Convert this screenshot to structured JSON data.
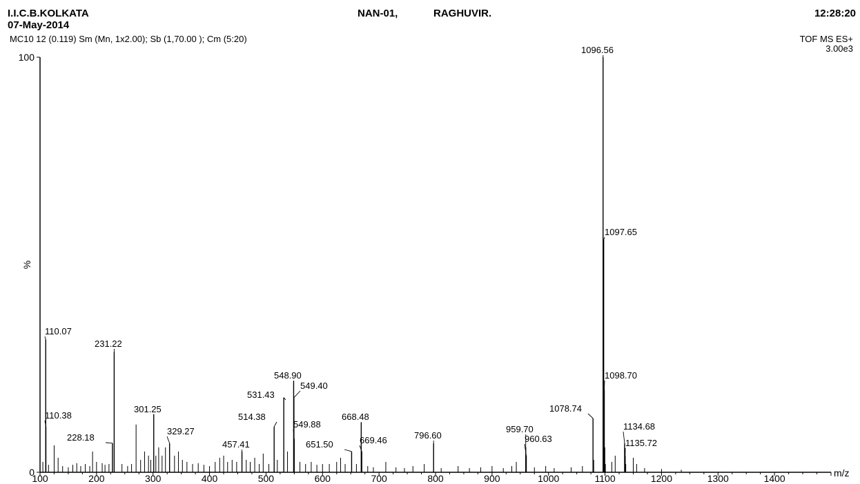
{
  "header": {
    "institute": "I.I.C.B.KOLKATA",
    "date": "07-May-2014",
    "sample": "NAN-01,",
    "operator": "RAGHUVIR.",
    "time": "12:28:20",
    "processing": "MC10  12 (0.119) Sm (Mn, 1x2.00); Sb (1,70.00 ); Cm (5:20)",
    "mode": "TOF MS ES+",
    "intensity": "3.00e3"
  },
  "chart_data": {
    "type": "bar",
    "title": "",
    "xlabel": "m/z",
    "ylabel": "%",
    "xlim": [
      100,
      1500
    ],
    "ylim": [
      0,
      100
    ],
    "x_ticks": [
      100,
      200,
      300,
      400,
      500,
      600,
      700,
      800,
      900,
      1000,
      1100,
      1200,
      1300,
      1400
    ],
    "y_ticks": [
      0,
      100
    ],
    "grid": false,
    "labeled_peaks": [
      {
        "mz": 110.07,
        "label": "110.07",
        "intensity": 32
      },
      {
        "mz": 110.38,
        "label": "110.38",
        "intensity": 11
      },
      {
        "mz": 228.18,
        "label": "228.18",
        "intensity": 7
      },
      {
        "mz": 231.22,
        "label": "231.22",
        "intensity": 29
      },
      {
        "mz": 301.25,
        "label": "301.25",
        "intensity": 14
      },
      {
        "mz": 329.27,
        "label": "329.27",
        "intensity": 7
      },
      {
        "mz": 457.41,
        "label": "457.41",
        "intensity": 5
      },
      {
        "mz": 514.38,
        "label": "514.38",
        "intensity": 11
      },
      {
        "mz": 531.43,
        "label": "531.43",
        "intensity": 18
      },
      {
        "mz": 548.9,
        "label": "548.90",
        "intensity": 22
      },
      {
        "mz": 549.4,
        "label": "549.40",
        "intensity": 18
      },
      {
        "mz": 549.88,
        "label": "549.88",
        "intensity": 8
      },
      {
        "mz": 651.5,
        "label": "651.50",
        "intensity": 5
      },
      {
        "mz": 668.48,
        "label": "668.48",
        "intensity": 12
      },
      {
        "mz": 669.46,
        "label": "669.46",
        "intensity": 5
      },
      {
        "mz": 796.6,
        "label": "796.60",
        "intensity": 7
      },
      {
        "mz": 959.7,
        "label": "959.70",
        "intensity": 6
      },
      {
        "mz": 960.63,
        "label": "960.63",
        "intensity": 4
      },
      {
        "mz": 1078.74,
        "label": "1078.74",
        "intensity": 13
      },
      {
        "mz": 1096.56,
        "label": "1096.56",
        "intensity": 100
      },
      {
        "mz": 1097.65,
        "label": "1097.65",
        "intensity": 56
      },
      {
        "mz": 1098.7,
        "label": "1098.70",
        "intensity": 20
      },
      {
        "mz": 1134.68,
        "label": "1134.68",
        "intensity": 7
      },
      {
        "mz": 1135.72,
        "label": "1135.72",
        "intensity": 4
      }
    ],
    "minor_peaks": [
      {
        "mz": 105,
        "intensity": 2.5
      },
      {
        "mz": 115,
        "intensity": 1.8
      },
      {
        "mz": 125,
        "intensity": 6.5
      },
      {
        "mz": 132,
        "intensity": 3.5
      },
      {
        "mz": 140,
        "intensity": 1.5
      },
      {
        "mz": 150,
        "intensity": 1.2
      },
      {
        "mz": 158,
        "intensity": 1.8
      },
      {
        "mz": 165,
        "intensity": 2.2
      },
      {
        "mz": 172,
        "intensity": 1.5
      },
      {
        "mz": 180,
        "intensity": 2
      },
      {
        "mz": 188,
        "intensity": 1.5
      },
      {
        "mz": 193,
        "intensity": 5
      },
      {
        "mz": 200,
        "intensity": 2.5
      },
      {
        "mz": 210,
        "intensity": 2.2
      },
      {
        "mz": 215,
        "intensity": 1.8
      },
      {
        "mz": 222,
        "intensity": 2
      },
      {
        "mz": 245,
        "intensity": 2
      },
      {
        "mz": 255,
        "intensity": 1.5
      },
      {
        "mz": 262,
        "intensity": 2
      },
      {
        "mz": 270,
        "intensity": 11.5
      },
      {
        "mz": 278,
        "intensity": 3
      },
      {
        "mz": 285,
        "intensity": 5
      },
      {
        "mz": 292,
        "intensity": 4
      },
      {
        "mz": 296,
        "intensity": 3
      },
      {
        "mz": 305,
        "intensity": 4
      },
      {
        "mz": 310,
        "intensity": 6
      },
      {
        "mz": 316,
        "intensity": 4
      },
      {
        "mz": 322,
        "intensity": 6
      },
      {
        "mz": 338,
        "intensity": 4
      },
      {
        "mz": 345,
        "intensity": 5
      },
      {
        "mz": 352,
        "intensity": 3
      },
      {
        "mz": 360,
        "intensity": 2.5
      },
      {
        "mz": 370,
        "intensity": 2
      },
      {
        "mz": 380,
        "intensity": 2.2
      },
      {
        "mz": 390,
        "intensity": 1.8
      },
      {
        "mz": 400,
        "intensity": 1.5
      },
      {
        "mz": 410,
        "intensity": 2.5
      },
      {
        "mz": 418,
        "intensity": 3.5
      },
      {
        "mz": 425,
        "intensity": 4
      },
      {
        "mz": 432,
        "intensity": 2.5
      },
      {
        "mz": 440,
        "intensity": 3
      },
      {
        "mz": 448,
        "intensity": 2.5
      },
      {
        "mz": 465,
        "intensity": 3
      },
      {
        "mz": 472,
        "intensity": 2.5
      },
      {
        "mz": 480,
        "intensity": 3.5
      },
      {
        "mz": 488,
        "intensity": 2
      },
      {
        "mz": 495,
        "intensity": 4.5
      },
      {
        "mz": 505,
        "intensity": 2
      },
      {
        "mz": 520,
        "intensity": 3
      },
      {
        "mz": 538,
        "intensity": 5
      },
      {
        "mz": 560,
        "intensity": 2.5
      },
      {
        "mz": 570,
        "intensity": 2
      },
      {
        "mz": 580,
        "intensity": 2.5
      },
      {
        "mz": 590,
        "intensity": 1.8
      },
      {
        "mz": 600,
        "intensity": 2
      },
      {
        "mz": 612,
        "intensity": 2
      },
      {
        "mz": 625,
        "intensity": 2.5
      },
      {
        "mz": 632,
        "intensity": 3.5
      },
      {
        "mz": 640,
        "intensity": 2
      },
      {
        "mz": 660,
        "intensity": 2
      },
      {
        "mz": 680,
        "intensity": 1.5
      },
      {
        "mz": 690,
        "intensity": 1.2
      },
      {
        "mz": 712,
        "intensity": 2.5
      },
      {
        "mz": 730,
        "intensity": 1.2
      },
      {
        "mz": 745,
        "intensity": 1
      },
      {
        "mz": 760,
        "intensity": 1.5
      },
      {
        "mz": 780,
        "intensity": 2
      },
      {
        "mz": 810,
        "intensity": 1
      },
      {
        "mz": 840,
        "intensity": 1.5
      },
      {
        "mz": 860,
        "intensity": 1
      },
      {
        "mz": 880,
        "intensity": 1.2
      },
      {
        "mz": 900,
        "intensity": 1.5
      },
      {
        "mz": 920,
        "intensity": 1
      },
      {
        "mz": 935,
        "intensity": 1.5
      },
      {
        "mz": 943,
        "intensity": 2.5
      },
      {
        "mz": 975,
        "intensity": 1.2
      },
      {
        "mz": 995,
        "intensity": 1.5
      },
      {
        "mz": 1010,
        "intensity": 1
      },
      {
        "mz": 1040,
        "intensity": 1.2
      },
      {
        "mz": 1060,
        "intensity": 1.5
      },
      {
        "mz": 1080,
        "intensity": 3
      },
      {
        "mz": 1099.7,
        "intensity": 6
      },
      {
        "mz": 1100.7,
        "intensity": 2
      },
      {
        "mz": 1112,
        "intensity": 2.5
      },
      {
        "mz": 1118,
        "intensity": 4
      },
      {
        "mz": 1136.7,
        "intensity": 2
      },
      {
        "mz": 1150,
        "intensity": 3.5
      },
      {
        "mz": 1156,
        "intensity": 2
      },
      {
        "mz": 1170,
        "intensity": 1
      },
      {
        "mz": 1200,
        "intensity": 0.8
      },
      {
        "mz": 1235,
        "intensity": 0.6
      }
    ],
    "colors": {
      "line": "#000000",
      "background": "#ffffff"
    }
  }
}
